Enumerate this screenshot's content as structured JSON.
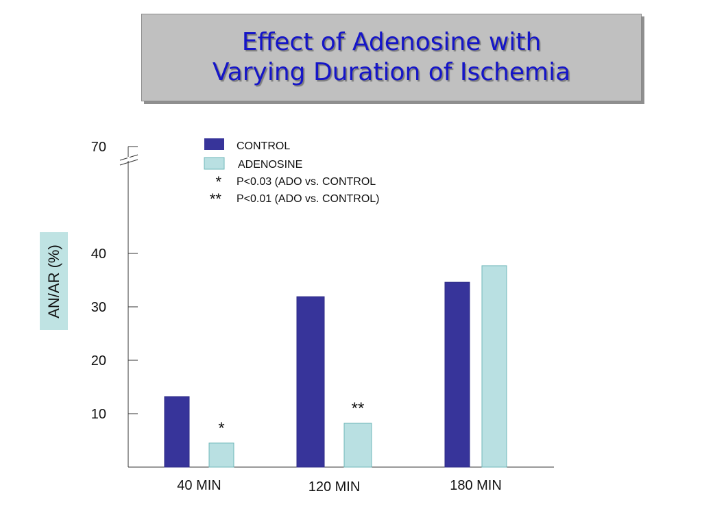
{
  "title_lines": [
    "Effect of Adenosine with",
    "Varying Duration of Ischemia"
  ],
  "chart_data": {
    "type": "bar",
    "ylabel": "AN/AR (%)",
    "categories": [
      "40 MIN",
      "120 MIN",
      "180 MIN"
    ],
    "series": [
      {
        "name": "CONTROL",
        "color": "#37349a",
        "values": [
          13.2,
          31.9,
          34.6
        ]
      },
      {
        "name": "ADENOSINE",
        "color": "#b9e0e2",
        "values": [
          4.5,
          8.2,
          37.7
        ]
      }
    ],
    "y_ticks": [
      10,
      20,
      30,
      40,
      70
    ],
    "axis_break": {
      "after": 40,
      "top_label": 70
    },
    "significance": [
      {
        "category": "40 MIN",
        "series": "ADENOSINE",
        "marker": "*"
      },
      {
        "category": "120 MIN",
        "series": "ADENOSINE",
        "marker": "**"
      }
    ],
    "legend": {
      "placement": "top-center",
      "notes": [
        {
          "marker": "*",
          "text": "P<0.03 (ADO vs. CONTROL"
        },
        {
          "marker": "**",
          "text": "P<0.01 (ADO vs. CONTROL)"
        }
      ]
    }
  }
}
